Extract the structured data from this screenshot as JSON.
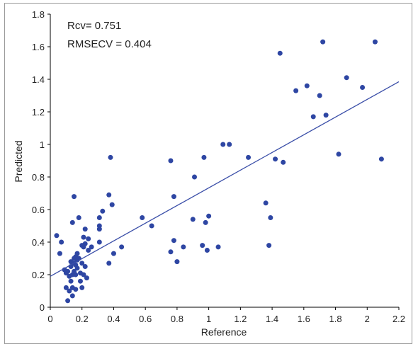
{
  "chart_data": {
    "type": "scatter",
    "xlabel": "Reference",
    "ylabel": "Predicted",
    "xlim": [
      0,
      2.2
    ],
    "ylim": [
      0,
      1.8
    ],
    "xticks": [
      "0",
      "0.2",
      "0.4",
      "0.6",
      "0.8",
      "1",
      "1.2",
      "1.4",
      "1.6",
      "1.8",
      "2",
      "2.2"
    ],
    "yticks": [
      "0",
      "0.2",
      "0.4",
      "0.6",
      "0.8",
      "1",
      "1.2",
      "1.4",
      "1.6",
      "1.8"
    ],
    "annotations": [
      "Rcv= 0.751",
      "RMSECV = 0.404"
    ],
    "grid": false,
    "marker_color": "#2e46a3",
    "line_color": "#3a4ea8",
    "regression_line": {
      "x": [
        0,
        2.2
      ],
      "y": [
        0.19,
        1.385
      ]
    },
    "points": [
      [
        0.04,
        0.44
      ],
      [
        0.06,
        0.33
      ],
      [
        0.07,
        0.4
      ],
      [
        0.09,
        0.23
      ],
      [
        0.1,
        0.21
      ],
      [
        0.1,
        0.12
      ],
      [
        0.11,
        0.04
      ],
      [
        0.11,
        0.22
      ],
      [
        0.12,
        0.19
      ],
      [
        0.12,
        0.1
      ],
      [
        0.13,
        0.16
      ],
      [
        0.13,
        0.25
      ],
      [
        0.13,
        0.28
      ],
      [
        0.14,
        0.52
      ],
      [
        0.14,
        0.2
      ],
      [
        0.14,
        0.12
      ],
      [
        0.14,
        0.07
      ],
      [
        0.15,
        0.68
      ],
      [
        0.15,
        0.27
      ],
      [
        0.15,
        0.3
      ],
      [
        0.15,
        0.22
      ],
      [
        0.16,
        0.26
      ],
      [
        0.16,
        0.31
      ],
      [
        0.16,
        0.2
      ],
      [
        0.16,
        0.11
      ],
      [
        0.17,
        0.33
      ],
      [
        0.17,
        0.29
      ],
      [
        0.17,
        0.24
      ],
      [
        0.18,
        0.55
      ],
      [
        0.18,
        0.3
      ],
      [
        0.19,
        0.21
      ],
      [
        0.19,
        0.16
      ],
      [
        0.2,
        0.12
      ],
      [
        0.2,
        0.38
      ],
      [
        0.2,
        0.27
      ],
      [
        0.21,
        0.43
      ],
      [
        0.21,
        0.37
      ],
      [
        0.21,
        0.2
      ],
      [
        0.22,
        0.48
      ],
      [
        0.22,
        0.39
      ],
      [
        0.22,
        0.25
      ],
      [
        0.23,
        0.18
      ],
      [
        0.24,
        0.35
      ],
      [
        0.24,
        0.42
      ],
      [
        0.26,
        0.37
      ],
      [
        0.31,
        0.55
      ],
      [
        0.31,
        0.5
      ],
      [
        0.31,
        0.48
      ],
      [
        0.31,
        0.4
      ],
      [
        0.33,
        0.59
      ],
      [
        0.37,
        0.27
      ],
      [
        0.37,
        0.69
      ],
      [
        0.38,
        0.92
      ],
      [
        0.39,
        0.63
      ],
      [
        0.4,
        0.33
      ],
      [
        0.45,
        0.37
      ],
      [
        0.58,
        0.55
      ],
      [
        0.64,
        0.5
      ],
      [
        0.76,
        0.9
      ],
      [
        0.76,
        0.34
      ],
      [
        0.78,
        0.41
      ],
      [
        0.78,
        0.68
      ],
      [
        0.8,
        0.28
      ],
      [
        0.84,
        0.37
      ],
      [
        0.9,
        0.54
      ],
      [
        0.91,
        0.8
      ],
      [
        0.96,
        0.38
      ],
      [
        0.97,
        0.92
      ],
      [
        0.98,
        0.52
      ],
      [
        0.99,
        0.35
      ],
      [
        1.0,
        0.56
      ],
      [
        1.06,
        0.37
      ],
      [
        1.09,
        1.0
      ],
      [
        1.13,
        1.0
      ],
      [
        1.25,
        0.92
      ],
      [
        1.36,
        0.64
      ],
      [
        1.38,
        0.38
      ],
      [
        1.39,
        0.55
      ],
      [
        1.42,
        0.91
      ],
      [
        1.45,
        1.56
      ],
      [
        1.47,
        0.89
      ],
      [
        1.55,
        1.33
      ],
      [
        1.62,
        1.36
      ],
      [
        1.66,
        1.17
      ],
      [
        1.7,
        1.3
      ],
      [
        1.72,
        1.63
      ],
      [
        1.74,
        1.18
      ],
      [
        1.82,
        0.94
      ],
      [
        1.87,
        1.41
      ],
      [
        1.97,
        1.35
      ],
      [
        2.05,
        1.63
      ],
      [
        2.09,
        0.91
      ]
    ]
  }
}
